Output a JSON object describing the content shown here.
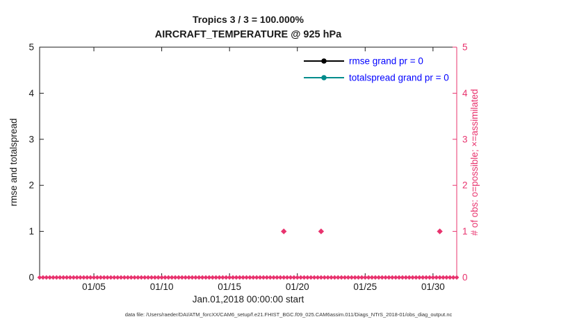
{
  "figure": {
    "title": "Tropics 3 / 3 = 100.000%",
    "subtitle": "AIRCRAFT_TEMPERATURE @ 925 hPa",
    "xlabel": "Jan.01,2018 00:00:00 start",
    "ylabel_left": "rmse and totalspread",
    "ylabel_right": "# of obs: o=possible; ×=assimilated",
    "footer": "data file: /Users/raeder/DAI/ATM_forcXX/CAM6_setup/f.e21.FHIST_BGC.f09_025.CAM6assim.011/Diags_NTrS_2018-01/obs_diag_output.nc"
  },
  "colors": {
    "axis": "#1a1a1a",
    "obs": "#e8336e",
    "rmse": "#000000",
    "totalspread": "#008b8b",
    "legend_text": "#0000ff",
    "background": "#ffffff"
  },
  "chart_data": {
    "type": "scatter",
    "title": "Tropics 3 / 3 = 100.000%",
    "subtitle": "AIRCRAFT_TEMPERATURE @ 925 hPa",
    "xlabel": "Jan.01,2018 00:00:00 start",
    "ylabel_left": "rmse and totalspread",
    "ylabel_right": "# of obs: o=possible; ×=assimilated",
    "grid": false,
    "legend_position": "top-right-inside",
    "x_domain_days": [
      1,
      31.75
    ],
    "ylim": [
      0,
      5
    ],
    "yticks_left": [
      0,
      1,
      2,
      3,
      4,
      5
    ],
    "yticks_right": [
      0,
      1,
      2,
      3,
      4,
      5
    ],
    "xticks": [
      {
        "day": 5,
        "label": "01/05"
      },
      {
        "day": 10,
        "label": "01/10"
      },
      {
        "day": 15,
        "label": "01/15"
      },
      {
        "day": 20,
        "label": "01/20"
      },
      {
        "day": 25,
        "label": "01/25"
      },
      {
        "day": 30,
        "label": "01/30"
      }
    ],
    "legend": [
      {
        "label": "rmse grand pr = 0",
        "color": "#000000",
        "marker": "circle"
      },
      {
        "label": "totalspread grand pr = 0",
        "color": "#008b8b",
        "marker": "circle"
      }
    ],
    "series": [
      {
        "name": "rmse",
        "type": "line",
        "color": "#000000",
        "points": []
      },
      {
        "name": "totalspread",
        "type": "line",
        "color": "#008b8b",
        "points": []
      },
      {
        "name": "obs_count",
        "type": "scatter",
        "marker": "diamond",
        "color": "#e8336e",
        "baseline": {
          "value": 0,
          "day_start": 1,
          "day_end": 31.75,
          "step_days": 0.25
        },
        "spikes": [
          {
            "day": 19.0,
            "value": 1
          },
          {
            "day": 21.75,
            "value": 1
          },
          {
            "day": 30.5,
            "value": 1
          }
        ]
      }
    ]
  }
}
